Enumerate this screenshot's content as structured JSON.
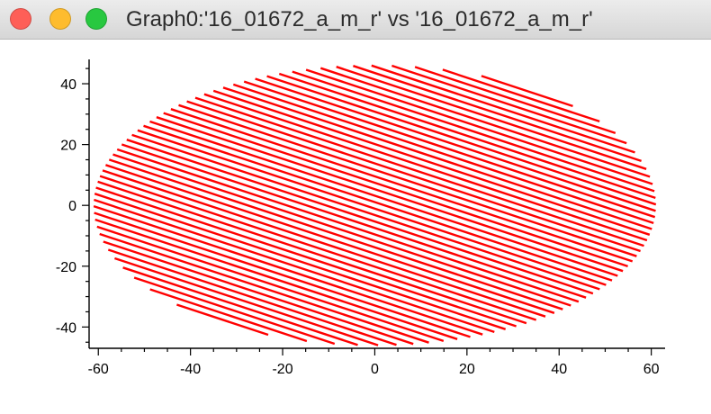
{
  "window": {
    "title": "Graph0:'16_01672_a_m_r' vs '16_01672_a_m_r'",
    "buttons": {
      "close_color": "#fe5f57",
      "minimize_color": "#febc2e",
      "zoom_color": "#28c840"
    }
  },
  "chart_data": {
    "type": "line",
    "title": "",
    "xlabel": "",
    "ylabel": "",
    "xlim": [
      -62,
      63
    ],
    "ylim": [
      -47,
      48
    ],
    "xticks": [
      -60,
      -40,
      -20,
      0,
      20,
      40,
      60
    ],
    "yticks": [
      -40,
      -20,
      0,
      20,
      40
    ],
    "grid": false,
    "legend": "none",
    "series": [
      {
        "color": "#ff0000",
        "description_shape": "parallel diagonal raster lines filling an ellipse",
        "ellipse": {
          "cx": 0,
          "cy": 0,
          "rx": 61,
          "ry": 46
        },
        "line_slope": -0.5,
        "line_count": 52
      }
    ]
  }
}
